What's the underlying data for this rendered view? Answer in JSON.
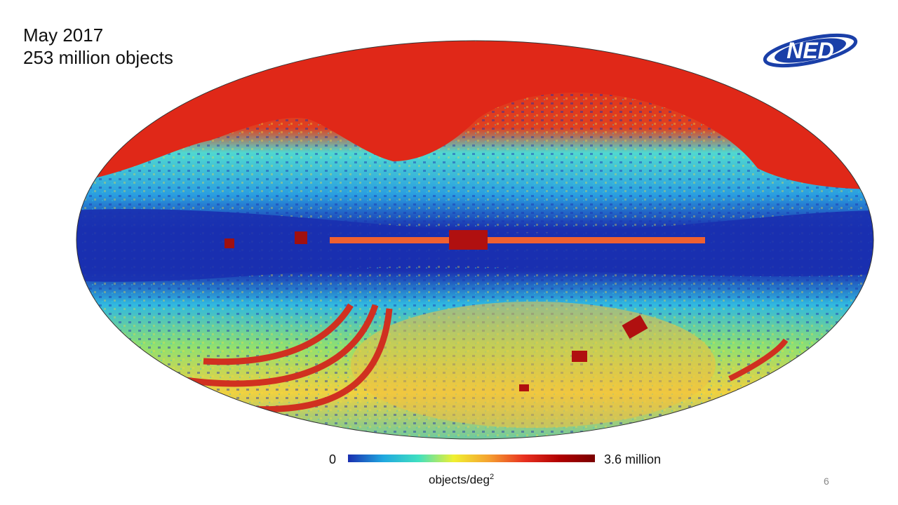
{
  "slide": {
    "title_line1": "May 2017",
    "title_line2": "253 million objects",
    "page_number": "6"
  },
  "logo": {
    "text": "NED",
    "color": "#1a3fa8"
  },
  "colorbar": {
    "min_label": "0",
    "max_label": "3.6 million",
    "unit_base": "objects/deg",
    "unit_exp": "2",
    "colors": [
      "#1a2fb0",
      "#20a8e0",
      "#40e0c0",
      "#f0f030",
      "#f5a030",
      "#e83020",
      "#b00000",
      "#7a0000"
    ]
  }
}
